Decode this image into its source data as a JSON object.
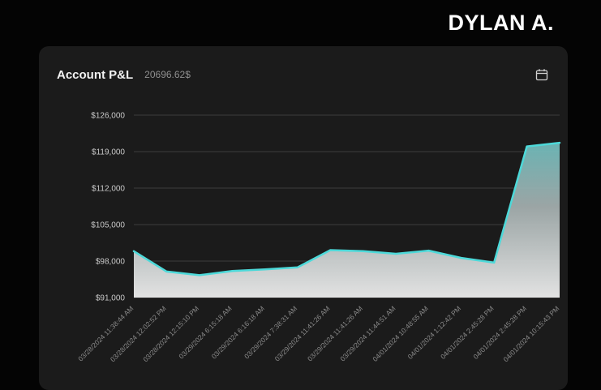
{
  "header": {
    "brand": "DYLAN A."
  },
  "card": {
    "title": "Account P&L",
    "value": "20696.62$",
    "calendar_icon": "calendar-icon"
  },
  "colors": {
    "background": "#040404",
    "card_background": "#1b1b1b",
    "accent_line": "#4dd9d9",
    "grid": "#3d3d3d",
    "x_axis_text": "#8a8a8a",
    "y_axis_text": "#c9c9c9",
    "area_top": "#57c2c2",
    "area_mid": "#a9b4b4",
    "area_bottom": "#ededed"
  },
  "chart_data": {
    "type": "area",
    "title": "Account P&L",
    "x": [
      "03/28/2024 11:38:44 AM",
      "03/28/2024 12:02:52 PM",
      "03/28/2024 12:15:10 PM",
      "03/29/2024 6:15:18 AM",
      "03/29/2024 6:16:18 AM",
      "03/29/2024 7:38:31 AM",
      "03/29/2024 11:41:26 AM",
      "03/29/2024 11:41:26 AM",
      "03/29/2024 11:44:51 AM",
      "04/01/2024 10:48:55 AM",
      "04/01/2024 1:12:42 PM",
      "04/01/2024 2:45:28 PM",
      "04/01/2024 2:45:28 PM",
      "04/01/2024 10:15:43 PM"
    ],
    "values": [
      99900,
      96000,
      95300,
      96100,
      96400,
      96800,
      100100,
      99900,
      99400,
      100000,
      98600,
      97700,
      120000,
      120700
    ],
    "ylim": [
      91000,
      126000
    ],
    "y_ticks": [
      126000,
      119000,
      112000,
      105000,
      98000,
      91000
    ],
    "y_tick_labels": [
      "$126,000",
      "$119,000",
      "$112,000",
      "$105,000",
      "$98,000",
      "$91,000"
    ],
    "grid": true,
    "legend": false,
    "xlabel": "",
    "ylabel": ""
  }
}
